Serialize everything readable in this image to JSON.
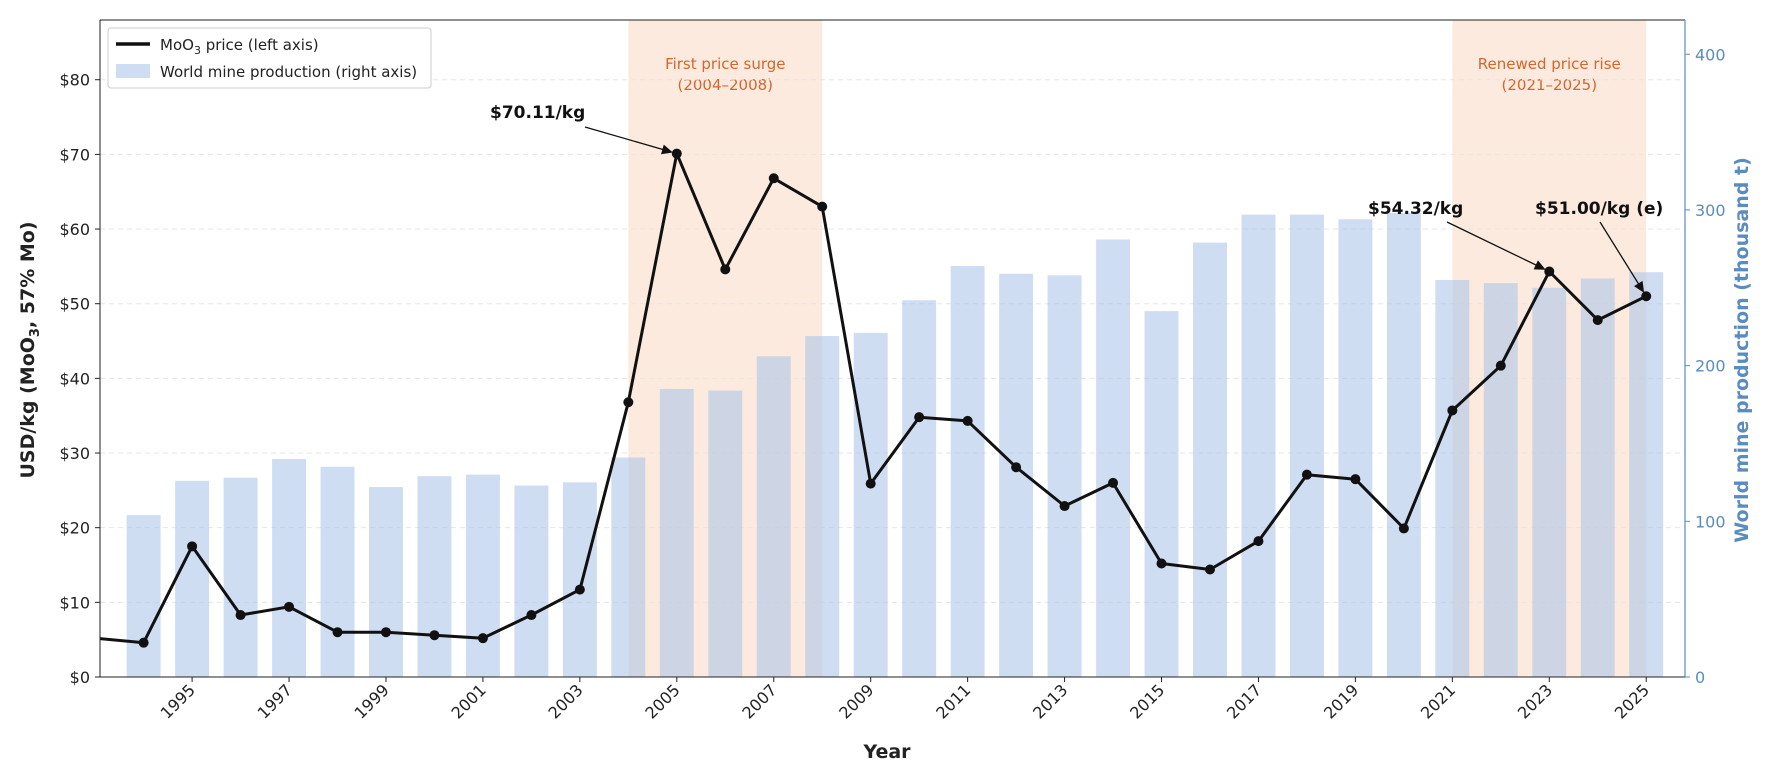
{
  "chart_data": {
    "type": "bar+line",
    "title": "",
    "xlabel": "Year",
    "ylabel_left_main": "USD/kg (MoO",
    "ylabel_left_sub": "3",
    "ylabel_left_end": ", 57% Mo)",
    "ylabel_right": "World mine production (thousand t)",
    "x_range": [
      1993.1,
      2025.8
    ],
    "ylim_left": [
      0,
      88
    ],
    "ylim_right": [
      0,
      422
    ],
    "left_ticks": [
      0,
      10,
      20,
      30,
      40,
      50,
      60,
      70,
      80
    ],
    "left_tick_labels": [
      "$0",
      "$10",
      "$20",
      "$30",
      "$40",
      "$50",
      "$60",
      "$70",
      "$80"
    ],
    "right_ticks": [
      0,
      100,
      200,
      300,
      400
    ],
    "right_tick_labels": [
      "0",
      "100",
      "200",
      "300",
      "400"
    ],
    "x_ticks": [
      1995,
      1997,
      1999,
      2001,
      2003,
      2005,
      2007,
      2009,
      2011,
      2013,
      2015,
      2017,
      2019,
      2021,
      2023,
      2025
    ],
    "x_tick_labels": [
      "1995",
      "1997",
      "1999",
      "2001",
      "2003",
      "2005",
      "2007",
      "2009",
      "2011",
      "2013",
      "2015",
      "2017",
      "2019",
      "2021",
      "2023",
      "2025"
    ],
    "grid": "horizontal dashed",
    "legend_position": "top-left",
    "legend": {
      "price_main": "MoO",
      "price_sub": "3",
      "price_end": " price (left axis)",
      "production": "World mine production (right axis)"
    },
    "price_series": {
      "name": "MoO3 price (left axis)",
      "color": "#111111",
      "x": [
        1993,
        1994,
        1995,
        1996,
        1997,
        1998,
        1999,
        2000,
        2001,
        2002,
        2003,
        2004,
        2005,
        2006,
        2007,
        2008,
        2009,
        2010,
        2011,
        2012,
        2013,
        2014,
        2015,
        2016,
        2017,
        2018,
        2019,
        2020,
        2021,
        2022,
        2023,
        2024,
        2025
      ],
      "values": [
        5.2,
        4.6,
        17.5,
        8.3,
        9.4,
        6.0,
        6.0,
        5.6,
        5.2,
        8.3,
        11.7,
        36.8,
        70.11,
        54.6,
        66.8,
        63.0,
        25.9,
        34.8,
        34.3,
        28.1,
        22.9,
        26.0,
        15.2,
        14.4,
        18.2,
        27.1,
        26.5,
        19.9,
        35.7,
        41.7,
        54.32,
        47.8,
        51.0
      ]
    },
    "production_series": {
      "name": "World mine production (right axis)",
      "color": "#aec6ea",
      "x": [
        1994,
        1995,
        1996,
        1997,
        1998,
        1999,
        2000,
        2001,
        2002,
        2003,
        2004,
        2005,
        2006,
        2007,
        2008,
        2009,
        2010,
        2011,
        2012,
        2013,
        2014,
        2015,
        2016,
        2017,
        2018,
        2019,
        2020,
        2021,
        2022,
        2023,
        2024,
        2025
      ],
      "values": [
        104,
        126,
        128,
        140,
        135,
        122,
        129,
        130,
        123,
        125,
        141,
        185,
        184,
        206,
        219,
        221,
        242,
        264,
        259,
        258,
        281,
        235,
        279,
        297,
        297,
        294,
        298,
        255,
        253,
        250,
        256,
        260
      ]
    },
    "shaded_regions": [
      {
        "start": 2004,
        "end": 2008,
        "label_line1": "First price surge",
        "label_line2": "(2004–2008)"
      },
      {
        "start": 2021,
        "end": 2025,
        "label_line1": "Renewed price rise",
        "label_line2": "(2021–2025)"
      }
    ],
    "annotations": [
      {
        "text": "$70.11/kg",
        "x": 2005,
        "y": 70.11
      },
      {
        "text": "$54.32/kg",
        "x": 2023,
        "y": 54.32
      },
      {
        "text": "$51.00/kg (e)",
        "x": 2025,
        "y": 51.0
      }
    ]
  },
  "colors": {
    "price_line": "#111111",
    "bars": "#aec6ea",
    "shade": "#fbe3d3",
    "right_axis": "#5b8cbf",
    "region_label": "#d2662f"
  }
}
